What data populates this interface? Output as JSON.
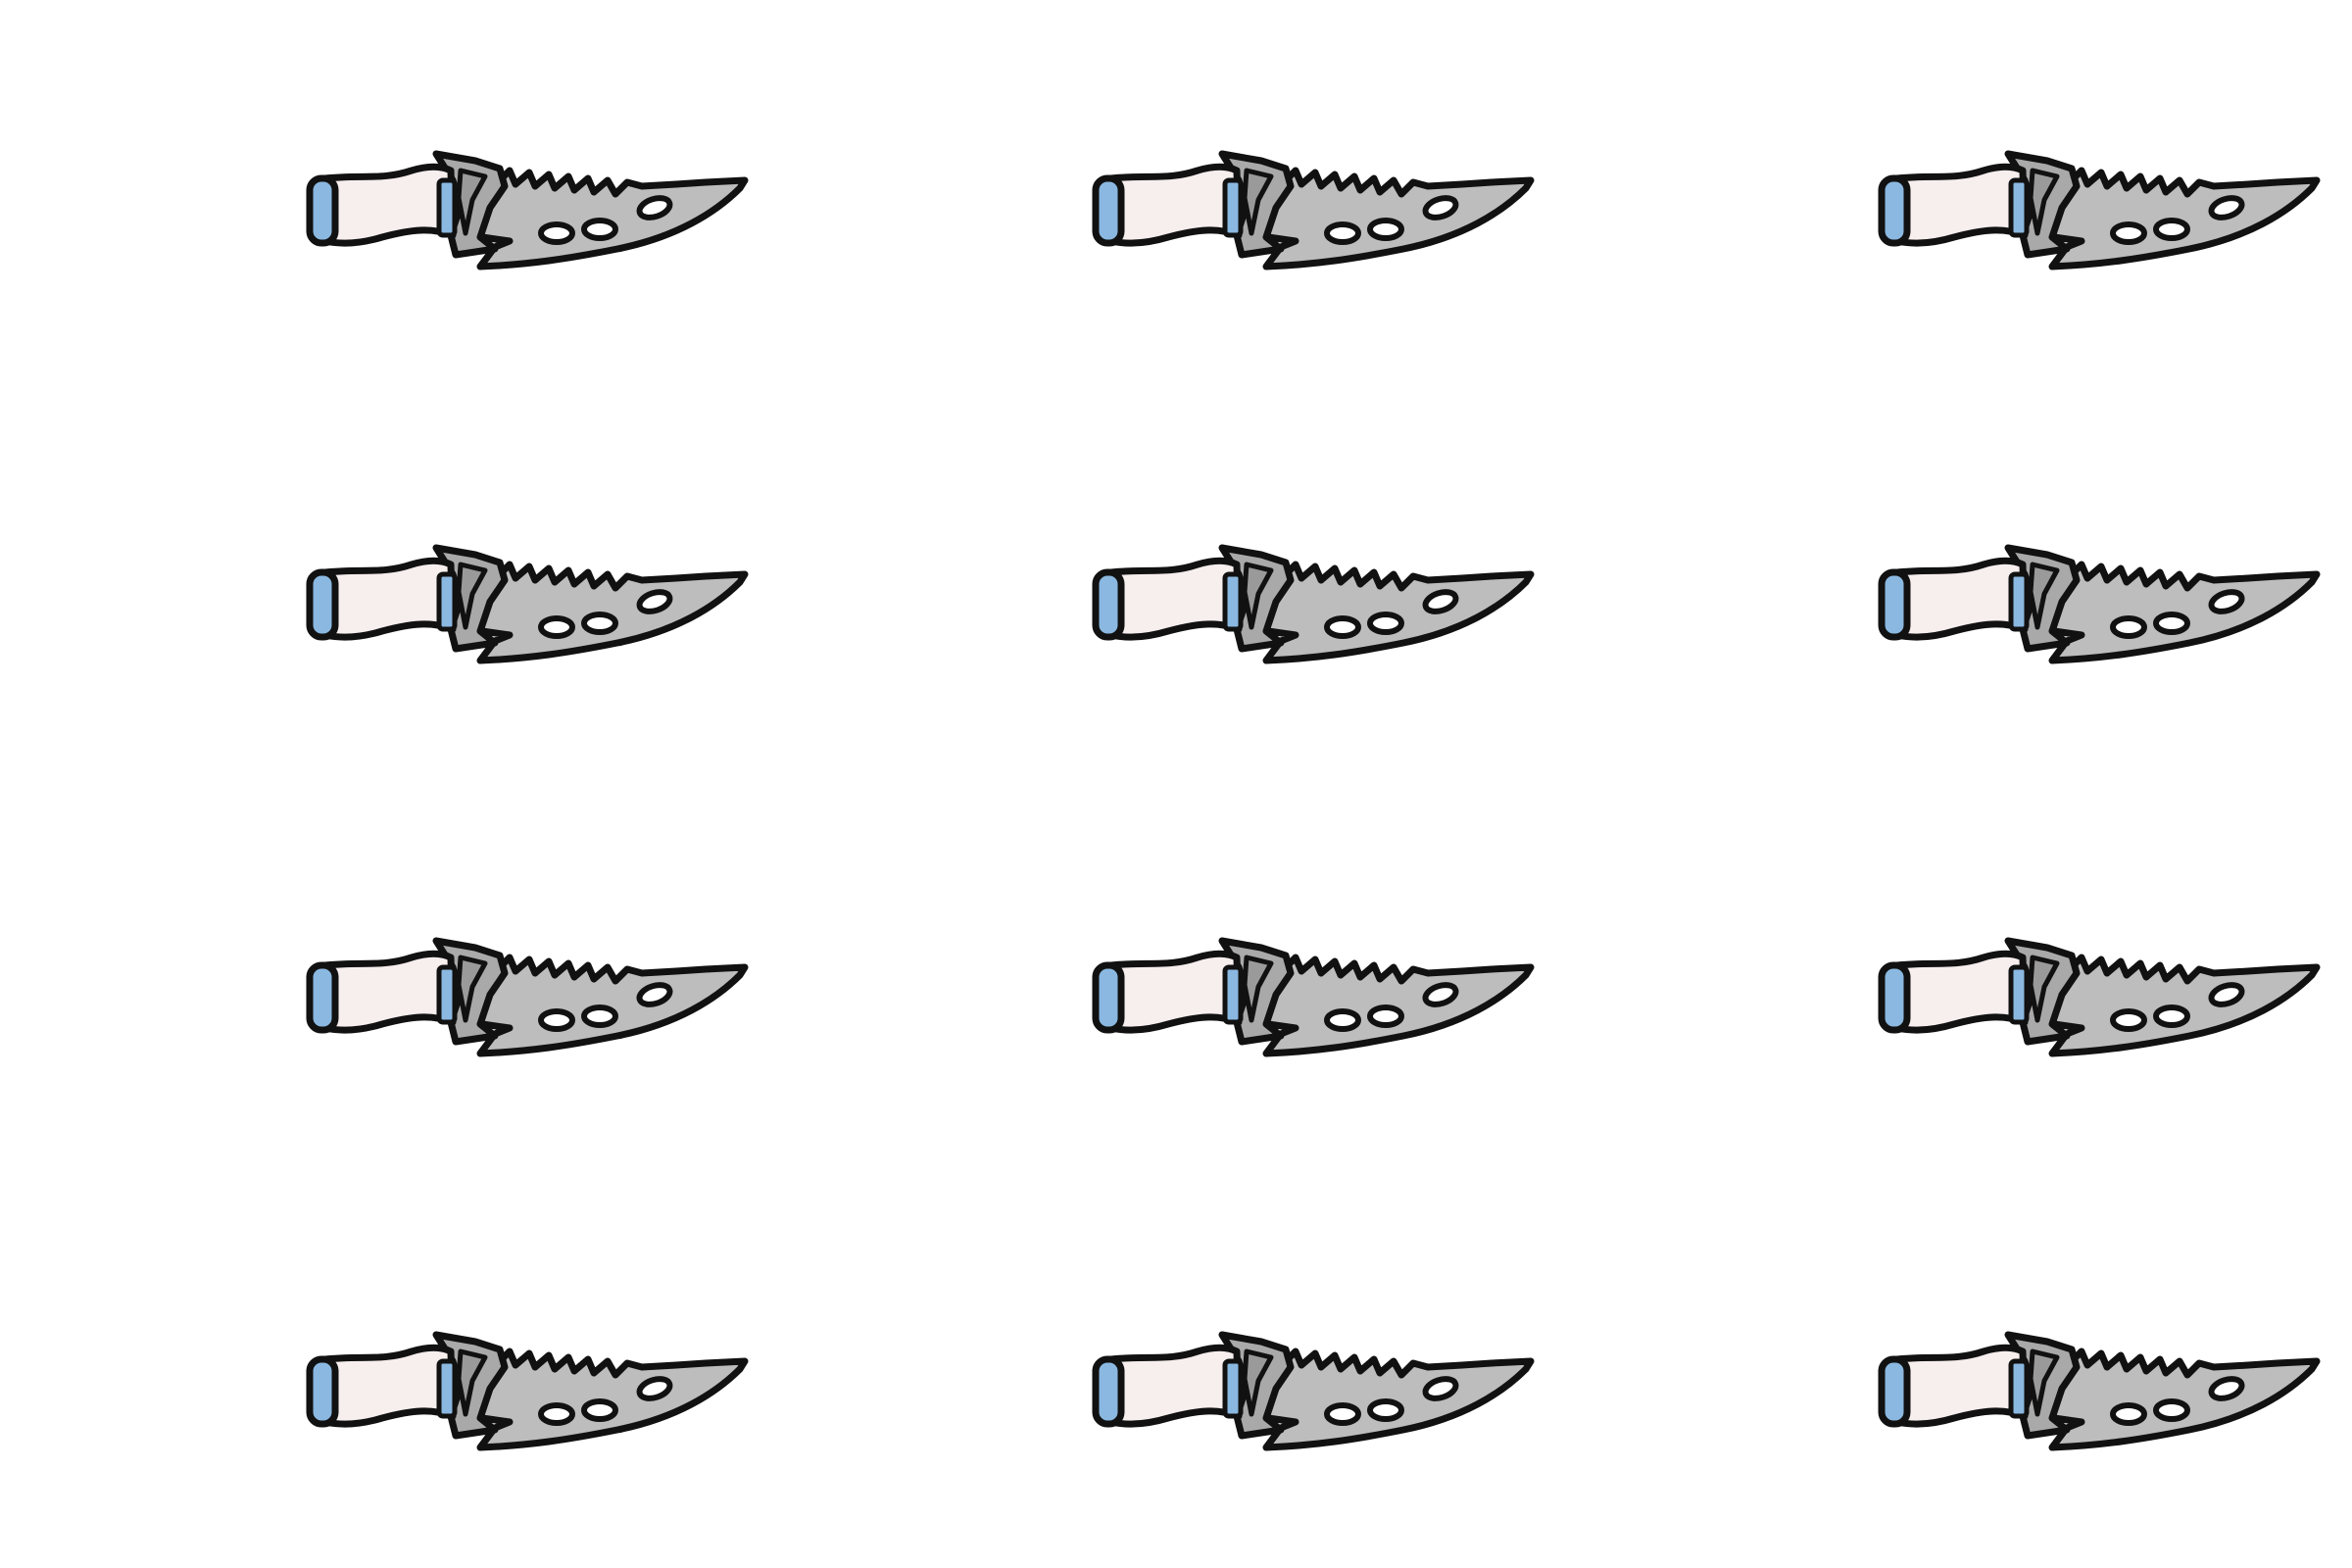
{
  "scene": {
    "background_color": "#ffffff",
    "subject": "knife-icon",
    "grid": {
      "rows": 4,
      "columns": 3,
      "count": 12
    }
  },
  "palette": {
    "outline": "#111111",
    "blade": "#bdbdbd",
    "guard": "#a9a9a9",
    "handle": "#f7eeee",
    "pommel": "#8ab8e0",
    "holes": "#ffffff"
  }
}
